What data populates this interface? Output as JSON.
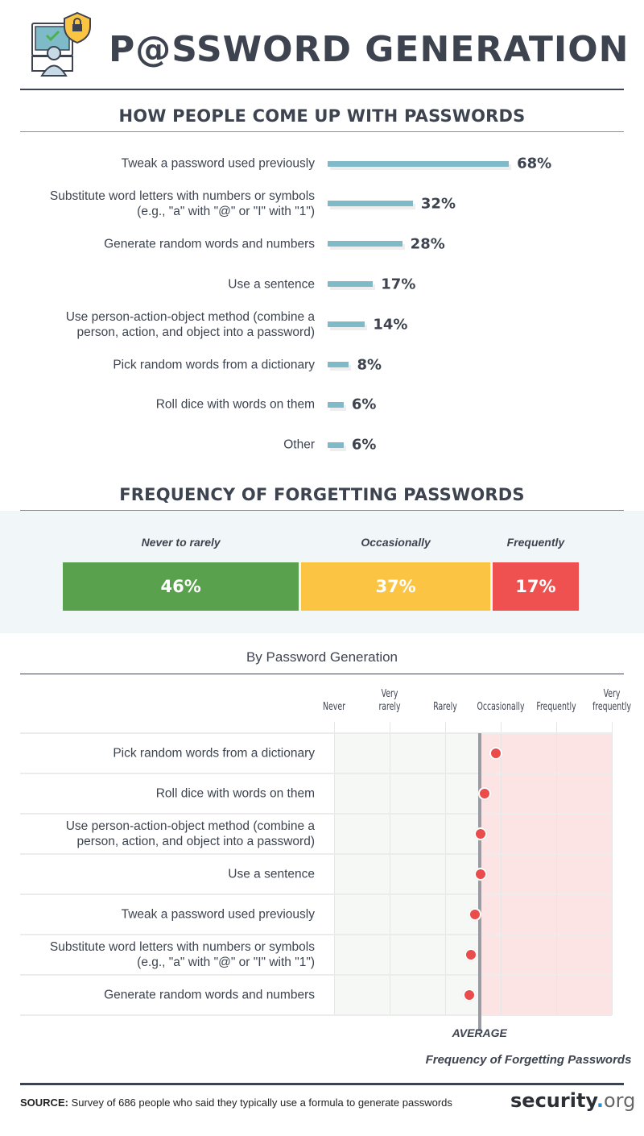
{
  "header": {
    "title": "P@SSWORD GENERATION",
    "icon": "computer-user-shield-lock-icon"
  },
  "colors": {
    "bar": "#7fbac8",
    "never": "#5aa14e",
    "occasionally": "#fcc443",
    "frequently": "#ef5050",
    "dot": "#ea4b4b",
    "average_line": "#9a9ca3",
    "above_avg_bg": "#fce4e4",
    "below_avg_bg": "#f6f8f6"
  },
  "chart_data": [
    {
      "type": "bar",
      "title": "HOW PEOPLE COME UP WITH PASSWORDS",
      "orientation": "horizontal",
      "categories": [
        "Tweak a password used previously",
        "Substitute word letters with numbers or symbols\n(e.g., \"a\" with \"@\" or \"I\" with \"1\")",
        "Generate random words and numbers",
        "Use a sentence",
        "Use person-action-object method (combine a\nperson, action, and object into a password)",
        "Pick random words from a dictionary",
        "Roll dice with words on them",
        "Other"
      ],
      "values": [
        68,
        32,
        28,
        17,
        14,
        8,
        6,
        6
      ],
      "value_labels": [
        "68%",
        "32%",
        "28%",
        "17%",
        "14%",
        "8%",
        "6%",
        "6%"
      ],
      "unit": "%"
    },
    {
      "type": "bar",
      "stacked": true,
      "title": "FREQUENCY OF FORGETTING PASSWORDS",
      "categories": [
        "Never to rarely",
        "Occasionally",
        "Frequently"
      ],
      "values": [
        46,
        37,
        17
      ],
      "value_labels": [
        "46%",
        "37%",
        "17%"
      ]
    },
    {
      "type": "scatter",
      "title": "By Password Generation",
      "xlabel": "Frequency of Forgetting Passwords",
      "x_ticks": [
        "Never",
        "Very\nrarely",
        "Rarely",
        "Occasionally",
        "Frequently",
        "Very\nfrequently"
      ],
      "xlim": [
        0,
        5
      ],
      "average": 2.62,
      "average_label": "AVERAGE",
      "categories": [
        "Pick random words from a dictionary",
        "Roll dice with words on them",
        "Use person-action-object method (combine a\nperson, action, and object into a password)",
        "Use a sentence",
        "Tweak a password used previously",
        "Substitute word letters with numbers or symbols\n(e.g., \"a\" with \"@\" or \"I\" with \"1\")",
        "Generate random words and numbers"
      ],
      "values": [
        2.91,
        2.71,
        2.64,
        2.64,
        2.54,
        2.46,
        2.43
      ]
    }
  ],
  "footer": {
    "source_label": "SOURCE:",
    "source_text": " Survey of 686 people who said they typically use a formula to generate passwords",
    "logo_main": "security",
    "logo_dot": ".",
    "logo_tld": "org"
  }
}
